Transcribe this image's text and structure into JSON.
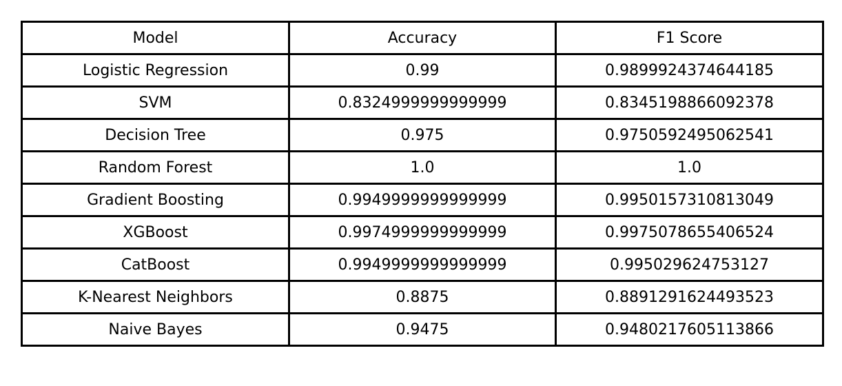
{
  "chart_data": {
    "type": "table",
    "columns": [
      "Model",
      "Accuracy",
      "F1 Score"
    ],
    "rows": [
      [
        "Logistic Regression",
        "0.99",
        "0.9899924374644185"
      ],
      [
        "SVM",
        "0.8324999999999999",
        "0.8345198866092378"
      ],
      [
        "Decision Tree",
        "0.975",
        "0.9750592495062541"
      ],
      [
        "Random Forest",
        "1.0",
        "1.0"
      ],
      [
        "Gradient Boosting",
        "0.9949999999999999",
        "0.9950157310813049"
      ],
      [
        "XGBoost",
        "0.9974999999999999",
        "0.9975078655406524"
      ],
      [
        "CatBoost",
        "0.9949999999999999",
        "0.995029624753127"
      ],
      [
        "K-Nearest Neighbors",
        "0.8875",
        "0.8891291624493523"
      ],
      [
        "Naive Bayes",
        "0.9475",
        "0.9480217605113866"
      ]
    ],
    "grid": true
  }
}
